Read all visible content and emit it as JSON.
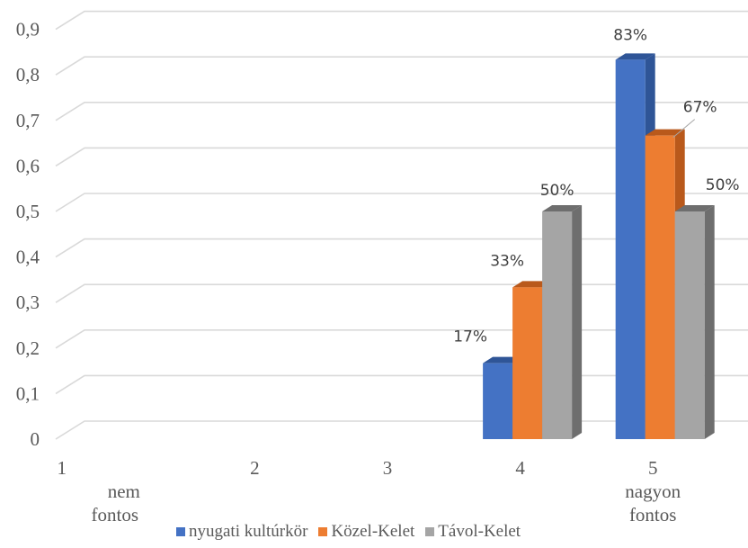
{
  "chart_data": {
    "type": "bar",
    "categories": [
      [
        "1",
        "nem",
        "fontos"
      ],
      [
        "2"
      ],
      [
        "3"
      ],
      [
        "4"
      ],
      [
        "5",
        "nagyon",
        "fontos"
      ]
    ],
    "series": [
      {
        "name": "nyugati kultúrkör",
        "color": "#4472C4",
        "side_color": "#2F5597",
        "values": [
          0,
          0,
          0,
          0.1667,
          0.8333
        ],
        "labels": [
          "",
          "",
          "",
          "17%",
          "83%"
        ]
      },
      {
        "name": "Közel-Kelet",
        "color": "#ED7D31",
        "side_color": "#B9591B",
        "values": [
          0,
          0,
          0,
          0.3333,
          0.6667
        ],
        "labels": [
          "",
          "",
          "",
          "33%",
          "67%"
        ]
      },
      {
        "name": "Távol-Kelet",
        "color": "#A5A5A5",
        "side_color": "#6E6E6E",
        "values": [
          0,
          0,
          0,
          0.5,
          0.5
        ],
        "labels": [
          "",
          "",
          "",
          "50%",
          "50%"
        ]
      }
    ],
    "y_ticks": [
      "0",
      "0,1",
      "0,2",
      "0,3",
      "0,4",
      "0,5",
      "0,6",
      "0,7",
      "0,8",
      "0,9"
    ],
    "ylim": [
      0,
      0.9
    ],
    "grid": true,
    "legend_position": "bottom",
    "title": "",
    "xlabel": "",
    "ylabel": ""
  }
}
